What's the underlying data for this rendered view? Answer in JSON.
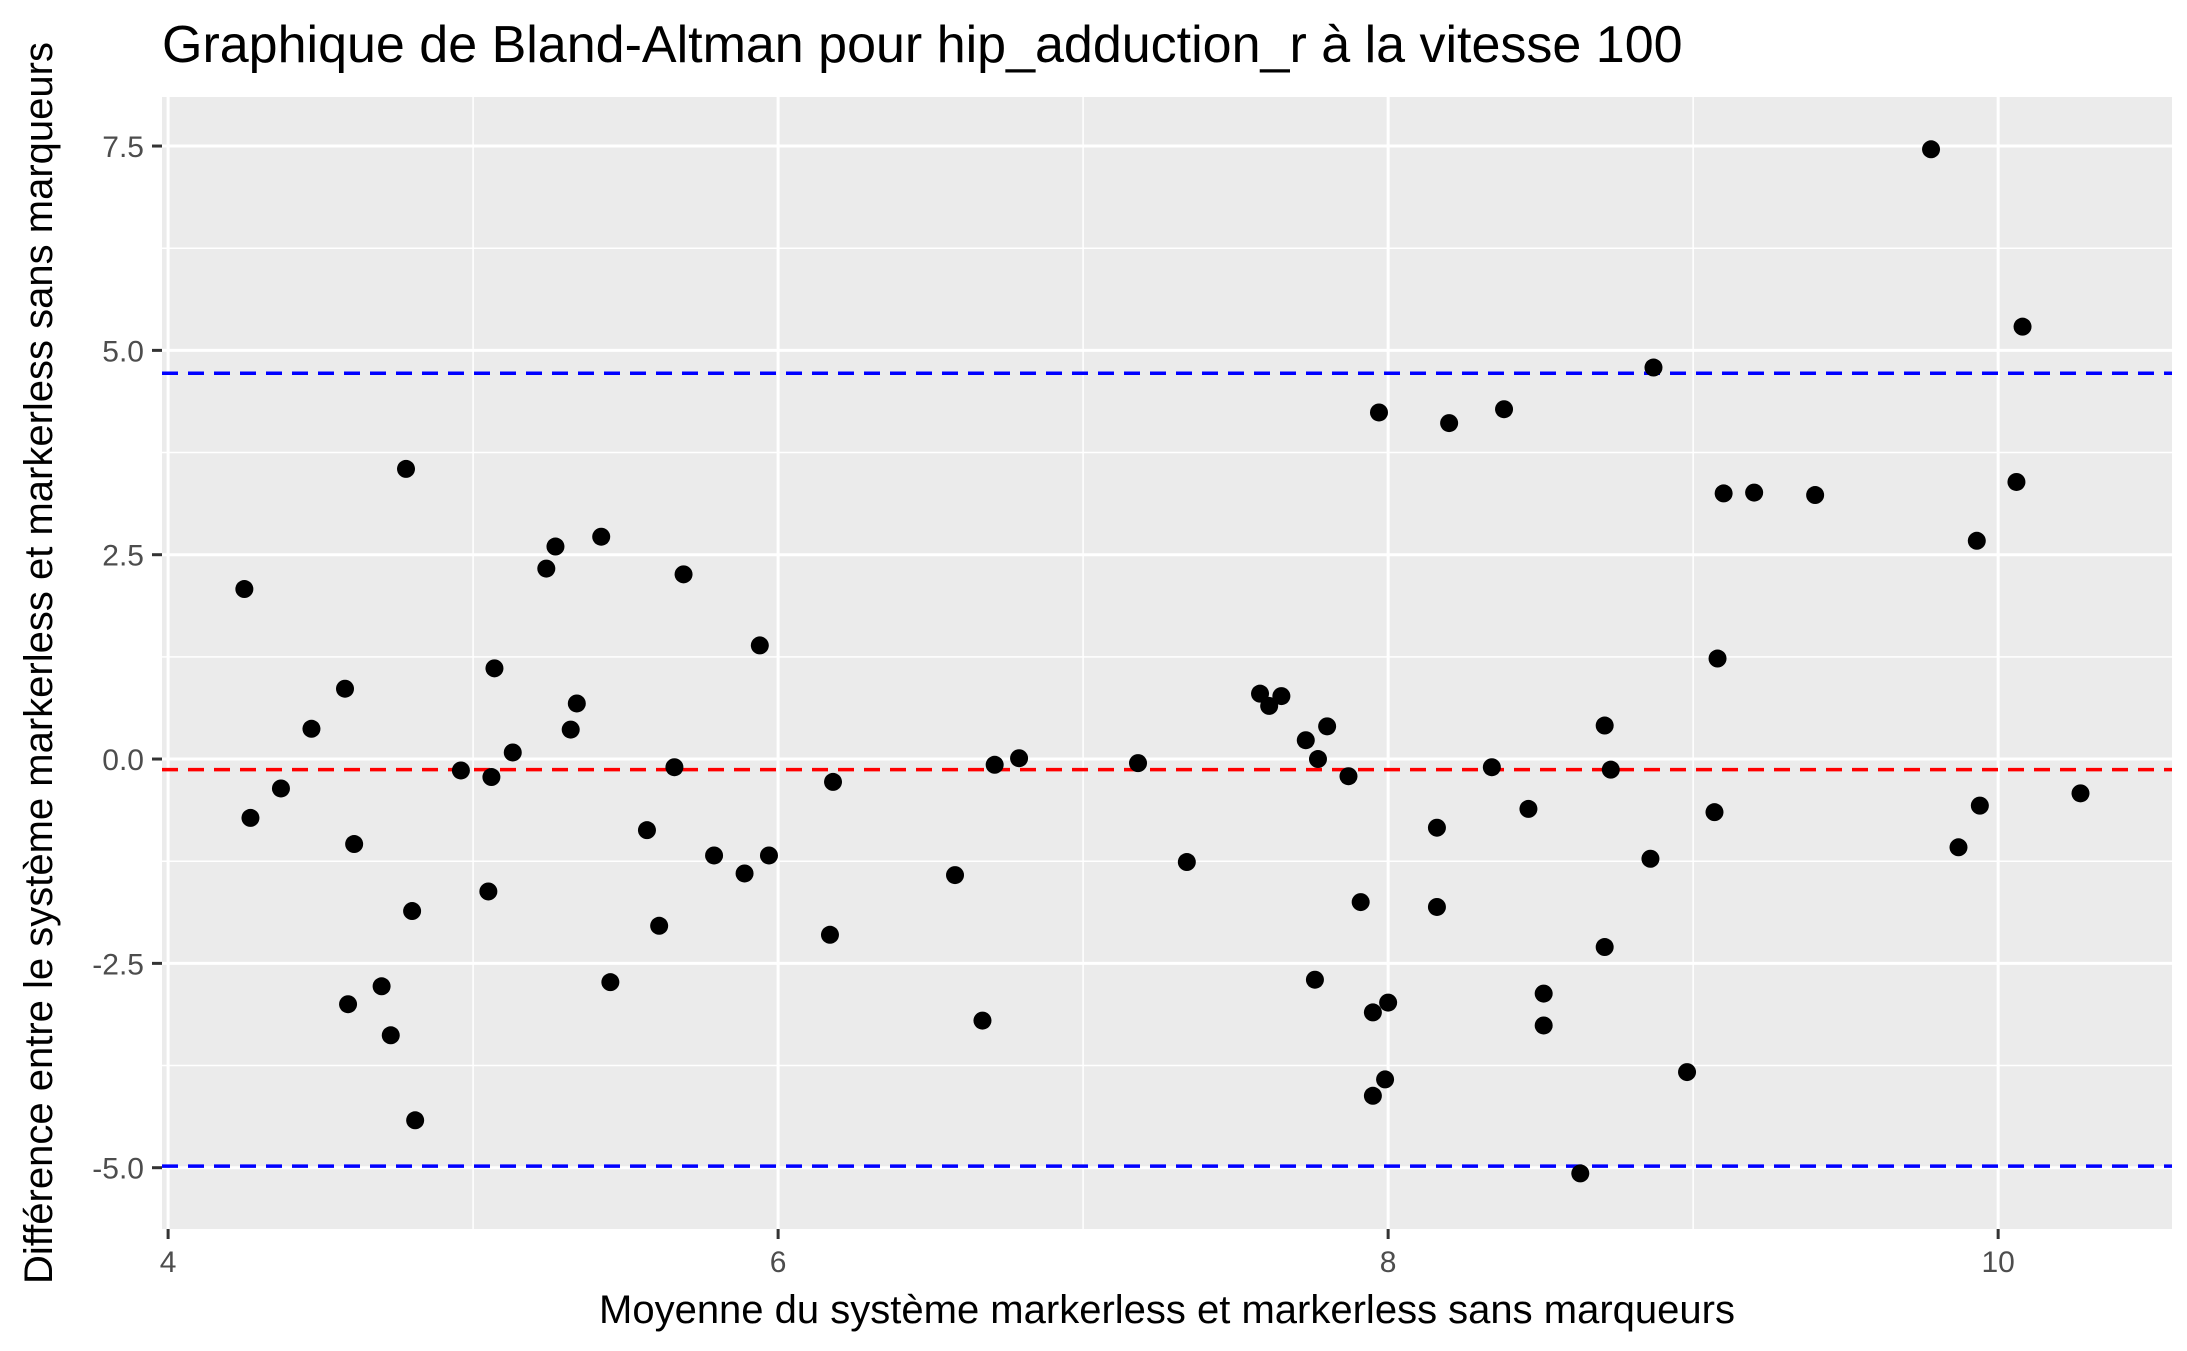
{
  "chart_data": {
    "type": "scatter",
    "title": "Graphique de Bland-Altman pour hip_adduction_r à la vitesse 100",
    "xlabel": "Moyenne du système markerless et markerless sans marqueurs",
    "ylabel": "Différence entre le système markerless et markerless sans marqueurs",
    "xlim": [
      3.98,
      10.57
    ],
    "ylim": [
      -5.75,
      8.1
    ],
    "x_ticks": [
      4,
      6,
      8,
      10
    ],
    "x_tick_labels": [
      "4",
      "6",
      "8",
      "10"
    ],
    "y_ticks": [
      -5.0,
      -2.5,
      0.0,
      2.5,
      5.0,
      7.5
    ],
    "y_tick_labels": [
      "-5.0",
      "-2.5",
      "0.0",
      "2.5",
      "5.0",
      "7.5"
    ],
    "grid": true,
    "reference_lines": [
      {
        "y": -0.13,
        "color": "#ff0000",
        "style": "dashed"
      },
      {
        "y": 4.72,
        "color": "#0000ff",
        "style": "dashed"
      },
      {
        "y": -4.98,
        "color": "#0000ff",
        "style": "dashed"
      }
    ],
    "point_color": "#000000",
    "panel_color": "#ebebeb",
    "grid_color": "#ffffff",
    "points": [
      {
        "x": 4.25,
        "y": 2.08
      },
      {
        "x": 4.27,
        "y": -0.72
      },
      {
        "x": 4.37,
        "y": -0.36
      },
      {
        "x": 4.47,
        "y": 0.37
      },
      {
        "x": 4.58,
        "y": 0.86
      },
      {
        "x": 4.59,
        "y": -3.0
      },
      {
        "x": 4.61,
        "y": -1.04
      },
      {
        "x": 4.7,
        "y": -2.78
      },
      {
        "x": 4.73,
        "y": -3.38
      },
      {
        "x": 4.78,
        "y": 3.55
      },
      {
        "x": 4.8,
        "y": -1.86
      },
      {
        "x": 4.81,
        "y": -4.42
      },
      {
        "x": 4.96,
        "y": -0.14
      },
      {
        "x": 5.05,
        "y": -1.62
      },
      {
        "x": 5.06,
        "y": -0.22
      },
      {
        "x": 5.07,
        "y": 1.11
      },
      {
        "x": 5.13,
        "y": 0.08
      },
      {
        "x": 5.24,
        "y": 2.33
      },
      {
        "x": 5.27,
        "y": 2.6
      },
      {
        "x": 5.32,
        "y": 0.36
      },
      {
        "x": 5.34,
        "y": 0.68
      },
      {
        "x": 5.42,
        "y": 2.72
      },
      {
        "x": 5.45,
        "y": -2.73
      },
      {
        "x": 5.57,
        "y": -0.87
      },
      {
        "x": 5.61,
        "y": -2.04
      },
      {
        "x": 5.66,
        "y": -0.1
      },
      {
        "x": 5.69,
        "y": 2.26
      },
      {
        "x": 5.79,
        "y": -1.18
      },
      {
        "x": 5.89,
        "y": -1.4
      },
      {
        "x": 5.94,
        "y": 1.39
      },
      {
        "x": 5.97,
        "y": -1.18
      },
      {
        "x": 6.17,
        "y": -2.15
      },
      {
        "x": 6.18,
        "y": -0.28
      },
      {
        "x": 6.58,
        "y": -1.42
      },
      {
        "x": 6.67,
        "y": -3.2
      },
      {
        "x": 6.71,
        "y": -0.07
      },
      {
        "x": 6.79,
        "y": 0.01
      },
      {
        "x": 7.18,
        "y": -0.05
      },
      {
        "x": 7.34,
        "y": -1.26
      },
      {
        "x": 7.58,
        "y": 0.8
      },
      {
        "x": 7.61,
        "y": 0.65
      },
      {
        "x": 7.65,
        "y": 0.77
      },
      {
        "x": 7.73,
        "y": 0.23
      },
      {
        "x": 7.76,
        "y": -2.7
      },
      {
        "x": 7.77,
        "y": 0.0
      },
      {
        "x": 7.8,
        "y": 0.4
      },
      {
        "x": 7.87,
        "y": -0.21
      },
      {
        "x": 7.91,
        "y": -1.75
      },
      {
        "x": 7.95,
        "y": -3.1
      },
      {
        "x": 7.95,
        "y": -4.12
      },
      {
        "x": 7.97,
        "y": 4.24
      },
      {
        "x": 7.99,
        "y": -3.92
      },
      {
        "x": 8.0,
        "y": -2.98
      },
      {
        "x": 8.16,
        "y": -0.84
      },
      {
        "x": 8.16,
        "y": -1.81
      },
      {
        "x": 8.2,
        "y": 4.11
      },
      {
        "x": 8.34,
        "y": -0.1
      },
      {
        "x": 8.38,
        "y": 4.28
      },
      {
        "x": 8.46,
        "y": -0.61
      },
      {
        "x": 8.51,
        "y": -2.87
      },
      {
        "x": 8.51,
        "y": -3.26
      },
      {
        "x": 8.63,
        "y": -5.07
      },
      {
        "x": 8.71,
        "y": 0.41
      },
      {
        "x": 8.71,
        "y": -2.3
      },
      {
        "x": 8.73,
        "y": -0.13
      },
      {
        "x": 8.86,
        "y": -1.22
      },
      {
        "x": 8.87,
        "y": 4.79
      },
      {
        "x": 8.98,
        "y": -3.83
      },
      {
        "x": 9.07,
        "y": -0.65
      },
      {
        "x": 9.08,
        "y": 1.23
      },
      {
        "x": 9.1,
        "y": 3.25
      },
      {
        "x": 9.2,
        "y": 3.26
      },
      {
        "x": 9.4,
        "y": 3.23
      },
      {
        "x": 9.78,
        "y": 7.46
      },
      {
        "x": 9.87,
        "y": -1.08
      },
      {
        "x": 9.93,
        "y": 2.67
      },
      {
        "x": 9.94,
        "y": -0.57
      },
      {
        "x": 10.06,
        "y": 3.39
      },
      {
        "x": 10.08,
        "y": 5.29
      },
      {
        "x": 10.27,
        "y": -0.42
      }
    ]
  }
}
